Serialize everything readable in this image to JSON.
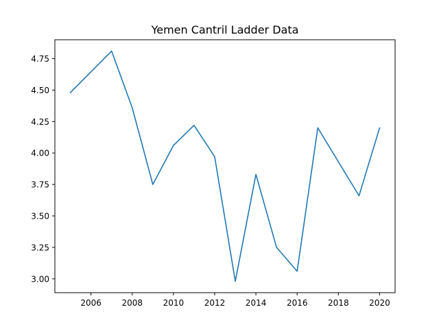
{
  "chart_data": {
    "type": "line",
    "title": "Yemen Cantril Ladder Data",
    "xlabel": "",
    "ylabel": "",
    "x": [
      2005,
      2007,
      2008,
      2009,
      2010,
      2011,
      2012,
      2013,
      2014,
      2015,
      2016,
      2017,
      2019,
      2020
    ],
    "series": [
      {
        "values": [
          4.48,
          4.81,
          4.36,
          3.75,
          4.06,
          4.22,
          3.97,
          2.98,
          3.83,
          3.25,
          3.06,
          4.2,
          3.66,
          4.2
        ],
        "color": "#1f77b4"
      }
    ],
    "xticks": [
      2006,
      2008,
      2010,
      2012,
      2014,
      2016,
      2018,
      2020
    ],
    "xtick_labels": [
      "2006",
      "2008",
      "2010",
      "2012",
      "2014",
      "2016",
      "2018",
      "2020"
    ],
    "yticks": [
      3.0,
      3.25,
      3.5,
      3.75,
      4.0,
      4.25,
      4.5,
      4.75
    ],
    "ytick_labels": [
      "3.00",
      "3.25",
      "3.50",
      "3.75",
      "4.00",
      "4.25",
      "4.50",
      "4.75"
    ],
    "xlim": [
      2004.25,
      2020.75
    ],
    "ylim": [
      2.89,
      4.9
    ],
    "grid": false,
    "legend": "none"
  }
}
